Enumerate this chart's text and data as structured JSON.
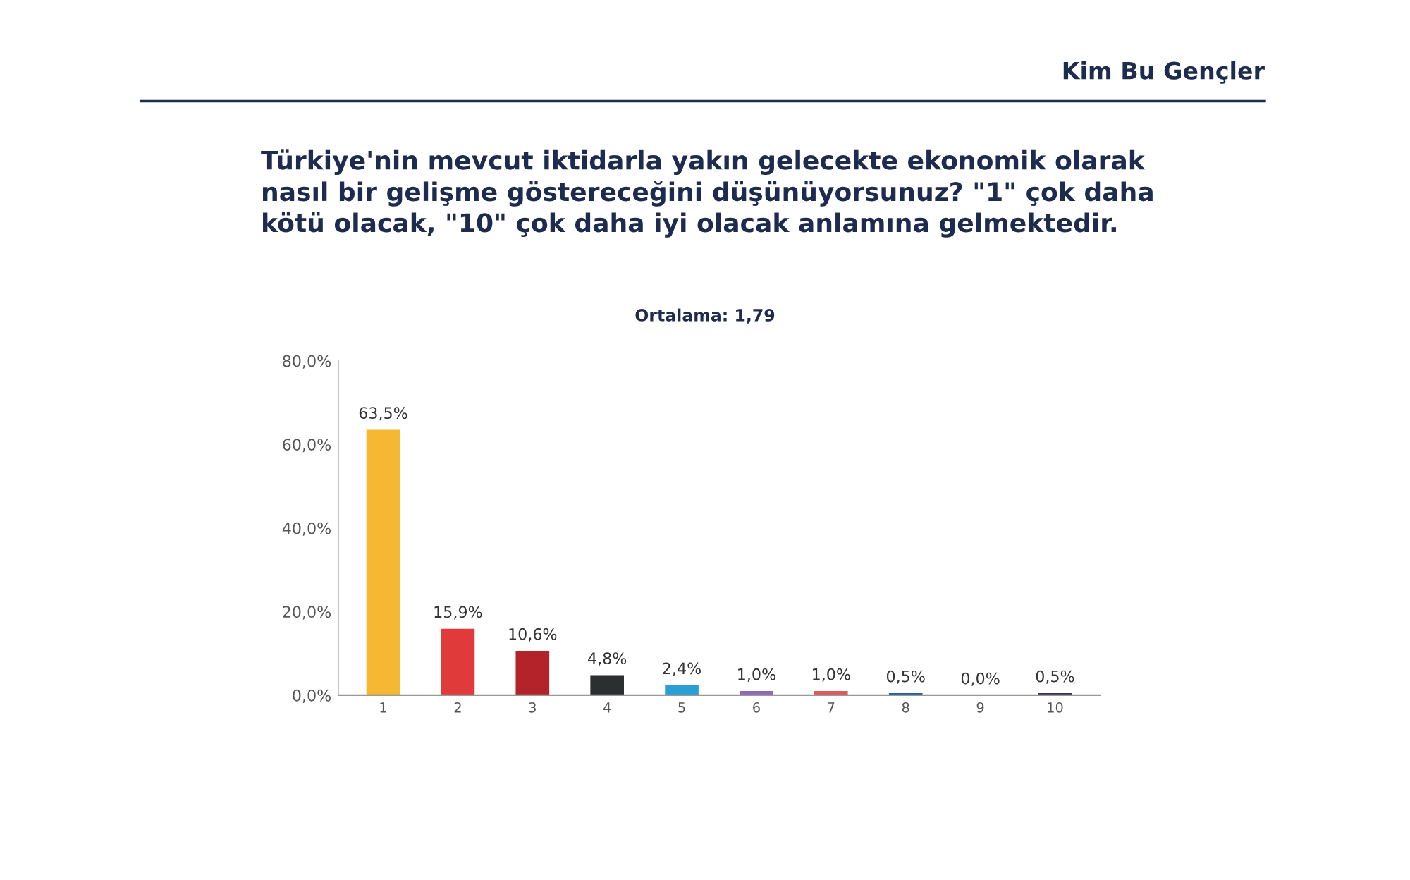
{
  "chart_data": {
    "type": "bar",
    "title": "Türkiye'nin mevcut iktidarla yakın gelecekte ekonomik olarak\nnasıl bir gelişme göstereceğini düşünüyorsunuz? \"1\" çok daha\nkötü olacak, \"10\" çok daha iyi olacak anlamına gelmektedir.",
    "subtitle": "Ortalama: 1,79",
    "annotations": [
      "Kim Bu Gençler"
    ],
    "categories": [
      "1",
      "2",
      "3",
      "4",
      "5",
      "6",
      "7",
      "8",
      "9",
      "10"
    ],
    "values": [
      63.5,
      15.9,
      10.6,
      4.8,
      2.4,
      1.0,
      1.0,
      0.5,
      0.0,
      0.5
    ],
    "value_labels": [
      "63,5%",
      "15,9%",
      "10,6%",
      "4,8%",
      "2,4%",
      "1,0%",
      "1,0%",
      "0,5%",
      "0,0%",
      "0,5%"
    ],
    "colors": [
      "#f6b833",
      "#e03a3a",
      "#b5232a",
      "#2b2f2f",
      "#2a9fd6",
      "#8b6bb5",
      "#e05a5a",
      "#1f5fa0",
      "#d62a2a",
      "#3a2e5e"
    ],
    "ylim": [
      0,
      80
    ],
    "yticks": [
      {
        "value": 0,
        "label": "0,0%"
      },
      {
        "value": 20,
        "label": "20,0%"
      },
      {
        "value": 40,
        "label": "40,0%"
      },
      {
        "value": 60,
        "label": "60,0%"
      },
      {
        "value": 80,
        "label": "80,0%"
      }
    ],
    "grid": false,
    "legend": false
  }
}
